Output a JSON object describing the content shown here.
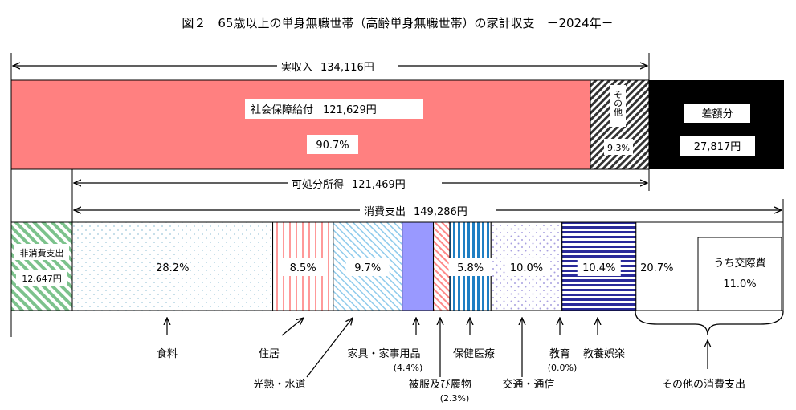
{
  "chart_data": {
    "type": "bar",
    "title": "図２　65歳以上の単身無職世帯（高齢単身無職世帯）の家計収支　－2024年－",
    "income": {
      "label": "実収入",
      "value": 134116,
      "value_text": "134,116円",
      "segments": [
        {
          "name": "社会保障給付",
          "value": 121629,
          "value_text": "121,629円",
          "pct": 90.7,
          "pct_text": "90.7%",
          "color": "#ff8080"
        },
        {
          "name": "その他",
          "value": 12487,
          "pct": 9.3,
          "pct_text": "9.3%",
          "color": "#444444"
        }
      ]
    },
    "deficit": {
      "label": "差額分",
      "value": 27817,
      "value_text": "27,817円",
      "color": "#000000"
    },
    "disposable": {
      "label": "可処分所得",
      "value": 121469,
      "value_text": "121,469円"
    },
    "consumption": {
      "label": "消費支出",
      "value": 149286,
      "value_text": "149,286円"
    },
    "non_consumption": {
      "label": "非消費支出",
      "value": 12647,
      "value_text": "12,647円"
    },
    "expenses": [
      {
        "name": "食料",
        "pct": 28.2,
        "pct_text": "28.2%",
        "color": "#d9ecf5"
      },
      {
        "name": "住居",
        "pct": 8.5,
        "pct_text": "8.5%",
        "color": "#ff9999"
      },
      {
        "name": "光熱・水道",
        "pct": 9.7,
        "pct_text": "9.7%",
        "color": "#9fd3ef"
      },
      {
        "name": "家具・家事用品",
        "pct": 4.4,
        "pct_text": "(4.4%)",
        "color": "#9999ff"
      },
      {
        "name": "被服及び履物",
        "pct": 2.3,
        "pct_text": "(2.3%)",
        "color": "#ff8888"
      },
      {
        "name": "保健医療",
        "pct": 5.8,
        "pct_text": "5.8%",
        "color": "#1f7fc4"
      },
      {
        "name": "交通・通信",
        "pct": 10.0,
        "pct_text": "10.0%",
        "color": "#a8a0e0"
      },
      {
        "name": "教育",
        "pct": 0.0,
        "pct_text": "(0.0%)",
        "color": "#ffffff"
      },
      {
        "name": "教養娯楽",
        "pct": 10.4,
        "pct_text": "10.4%",
        "color": "#2a2a9a"
      },
      {
        "name": "その他の消費支出",
        "pct": 20.7,
        "pct_text": "20.7%",
        "color": "#ffffff"
      }
    ],
    "sub_item": {
      "name": "うち交際費",
      "pct": 11.0,
      "pct_text": "11.0%"
    }
  }
}
